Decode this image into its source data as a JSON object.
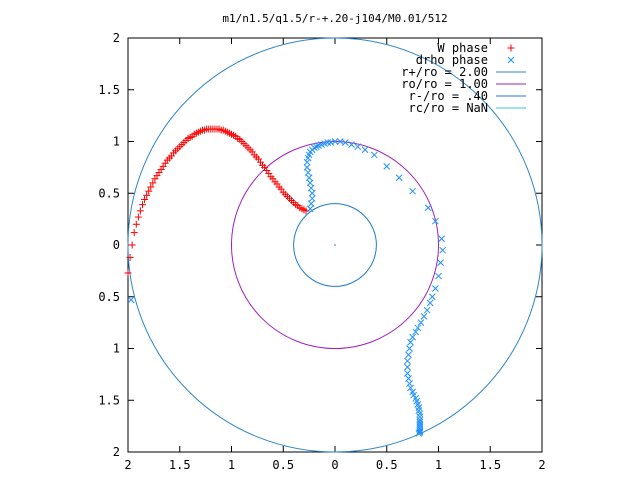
{
  "chart_data": {
    "type": "scatter",
    "title": "m1/n1.5/q1.5/r-+.20-j104/M0.01/512",
    "xlim": [
      -2,
      2
    ],
    "ylim": [
      -2,
      2
    ],
    "x_tick_labels": [
      "2",
      "1.5",
      "1",
      "0.5",
      "0",
      "0.5",
      "1",
      "1.5",
      "2"
    ],
    "y_tick_labels": [
      "2",
      "1.5",
      "1",
      "0.5",
      "0",
      "0.5",
      "1",
      "1.5",
      "2"
    ],
    "grid": false,
    "legend_position": "top-right",
    "series": [
      {
        "name": "W phase",
        "type": "scatter",
        "marker": "+",
        "color": "#ff0000",
        "x": [
          -2.0,
          -1.98,
          -1.96,
          -1.94,
          -1.92,
          -1.9,
          -1.88,
          -1.86,
          -1.84,
          -1.82,
          -1.8,
          -1.78,
          -1.76,
          -1.74,
          -1.72,
          -1.7,
          -1.68,
          -1.66,
          -1.64,
          -1.62,
          -1.6,
          -1.58,
          -1.56,
          -1.54,
          -1.52,
          -1.5,
          -1.48,
          -1.46,
          -1.44,
          -1.42,
          -1.4,
          -1.38,
          -1.36,
          -1.34,
          -1.32,
          -1.3,
          -1.28,
          -1.26,
          -1.24,
          -1.22,
          -1.2,
          -1.18,
          -1.16,
          -1.14,
          -1.12,
          -1.1,
          -1.08,
          -1.06,
          -1.04,
          -1.02,
          -1.0,
          -0.98,
          -0.96,
          -0.94,
          -0.92,
          -0.9,
          -0.88,
          -0.86,
          -0.84,
          -0.82,
          -0.8,
          -0.78,
          -0.76,
          -0.74,
          -0.72,
          -0.7,
          -0.68,
          -0.66,
          -0.64,
          -0.62,
          -0.6,
          -0.58,
          -0.56,
          -0.54,
          -0.52,
          -0.5,
          -0.48,
          -0.46,
          -0.44,
          -0.42,
          -0.4,
          -0.38,
          -0.36,
          -0.34,
          -0.32,
          -0.3,
          -0.28
        ],
        "y": [
          -0.27,
          -0.12,
          0.0,
          0.12,
          0.2,
          0.27,
          0.33,
          0.39,
          0.44,
          0.48,
          0.52,
          0.56,
          0.6,
          0.64,
          0.67,
          0.7,
          0.73,
          0.76,
          0.79,
          0.82,
          0.84,
          0.86,
          0.89,
          0.91,
          0.93,
          0.95,
          0.97,
          0.99,
          1.01,
          1.03,
          1.04,
          1.05,
          1.07,
          1.08,
          1.09,
          1.1,
          1.11,
          1.11,
          1.12,
          1.12,
          1.12,
          1.12,
          1.12,
          1.12,
          1.12,
          1.11,
          1.11,
          1.1,
          1.09,
          1.08,
          1.07,
          1.06,
          1.05,
          1.03,
          1.02,
          1.0,
          0.98,
          0.96,
          0.94,
          0.92,
          0.9,
          0.87,
          0.85,
          0.83,
          0.8,
          0.77,
          0.75,
          0.72,
          0.69,
          0.66,
          0.64,
          0.61,
          0.59,
          0.56,
          0.54,
          0.51,
          0.49,
          0.47,
          0.45,
          0.43,
          0.41,
          0.39,
          0.38,
          0.36,
          0.35,
          0.34,
          0.33
        ]
      },
      {
        "name": "drho phase",
        "type": "scatter",
        "marker": "x",
        "color": "#1e90ff",
        "x": [
          -1.97,
          -0.24,
          -0.23,
          -0.22,
          -0.22,
          -0.23,
          -0.24,
          -0.25,
          -0.26,
          -0.27,
          -0.27,
          -0.26,
          -0.25,
          -0.24,
          -0.22,
          -0.2,
          -0.18,
          -0.16,
          -0.13,
          -0.1,
          -0.07,
          -0.04,
          0.0,
          0.05,
          0.1,
          0.16,
          0.22,
          0.29,
          0.38,
          0.5,
          0.62,
          0.75,
          0.9,
          0.97,
          1.03,
          1.04,
          1.02,
          1.0,
          0.97,
          0.94,
          0.92,
          0.89,
          0.86,
          0.83,
          0.8,
          0.78,
          0.75,
          0.73,
          0.72,
          0.71,
          0.7,
          0.7,
          0.7,
          0.71,
          0.72,
          0.73,
          0.75,
          0.76,
          0.78,
          0.79,
          0.8,
          0.81,
          0.81,
          0.82,
          0.82,
          0.82,
          0.82,
          0.82,
          0.82,
          0.82,
          0.82,
          0.82,
          0.82,
          0.81
        ],
        "y": [
          -0.53,
          0.35,
          0.4,
          0.45,
          0.5,
          0.55,
          0.6,
          0.65,
          0.7,
          0.75,
          0.8,
          0.84,
          0.87,
          0.9,
          0.92,
          0.94,
          0.95,
          0.96,
          0.97,
          0.98,
          0.99,
          0.99,
          1.0,
          1.0,
          0.99,
          0.97,
          0.95,
          0.92,
          0.87,
          0.76,
          0.65,
          0.52,
          0.36,
          0.23,
          0.06,
          -0.05,
          -0.17,
          -0.3,
          -0.42,
          -0.5,
          -0.56,
          -0.63,
          -0.69,
          -0.75,
          -0.8,
          -0.84,
          -0.89,
          -0.94,
          -1.0,
          -1.06,
          -1.12,
          -1.18,
          -1.24,
          -1.29,
          -1.34,
          -1.38,
          -1.42,
          -1.45,
          -1.48,
          -1.51,
          -1.54,
          -1.57,
          -1.6,
          -1.63,
          -1.66,
          -1.69,
          -1.71,
          -1.73,
          -1.75,
          -1.77,
          -1.79,
          -1.8,
          -1.81,
          -1.82
        ]
      },
      {
        "name": "r+/ro = 2.00",
        "type": "circle",
        "r": 2.0,
        "color": "#2f86c9"
      },
      {
        "name": "ro/ro = 1.00",
        "type": "circle",
        "r": 1.0,
        "color": "#a020c0"
      },
      {
        "name": "r-/ro = .40",
        "type": "circle",
        "r": 0.4,
        "color": "#1f7ad0"
      },
      {
        "name": "rc/ro = NaN",
        "type": "circle",
        "r": null,
        "color": "#3fc0d8"
      }
    ]
  }
}
